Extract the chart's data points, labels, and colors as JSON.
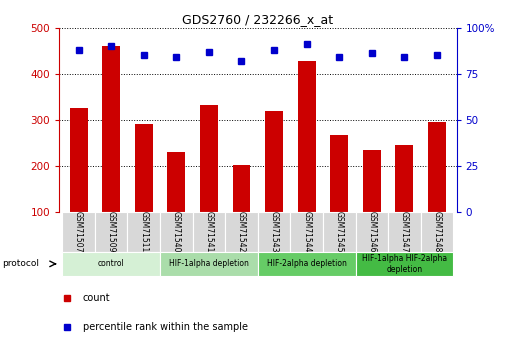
{
  "title": "GDS2760 / 232266_x_at",
  "samples": [
    "GSM71507",
    "GSM71509",
    "GSM71511",
    "GSM71540",
    "GSM71541",
    "GSM71542",
    "GSM71543",
    "GSM71544",
    "GSM71545",
    "GSM71546",
    "GSM71547",
    "GSM71548"
  ],
  "counts": [
    325,
    460,
    292,
    230,
    332,
    202,
    320,
    428,
    267,
    235,
    246,
    296
  ],
  "percentile_ranks": [
    88,
    90,
    85,
    84,
    87,
    82,
    88,
    91,
    84,
    86,
    84,
    85
  ],
  "ylim_left": [
    100,
    500
  ],
  "ylim_right": [
    0,
    100
  ],
  "yticks_left": [
    100,
    200,
    300,
    400,
    500
  ],
  "yticks_right": [
    0,
    25,
    50,
    75,
    100
  ],
  "ytick_labels_right": [
    "0",
    "25",
    "50",
    "75",
    "100%"
  ],
  "bar_color": "#cc0000",
  "dot_color": "#0000cc",
  "grid_color": "#000000",
  "plot_bg": "#ffffff",
  "tick_color_left": "#cc0000",
  "tick_color_right": "#0000cc",
  "protocol_groups": [
    {
      "label": "control",
      "start": 0,
      "end": 2,
      "color": "#d5f0d5"
    },
    {
      "label": "HIF-1alpha depletion",
      "start": 3,
      "end": 5,
      "color": "#aaddaa"
    },
    {
      "label": "HIF-2alpha depletion",
      "start": 6,
      "end": 8,
      "color": "#66cc66"
    },
    {
      "label": "HIF-1alpha HIF-2alpha\ndepletion",
      "start": 9,
      "end": 11,
      "color": "#44bb44"
    }
  ],
  "legend_count_label": "count",
  "legend_pct_label": "percentile rank within the sample",
  "protocol_label": "protocol"
}
